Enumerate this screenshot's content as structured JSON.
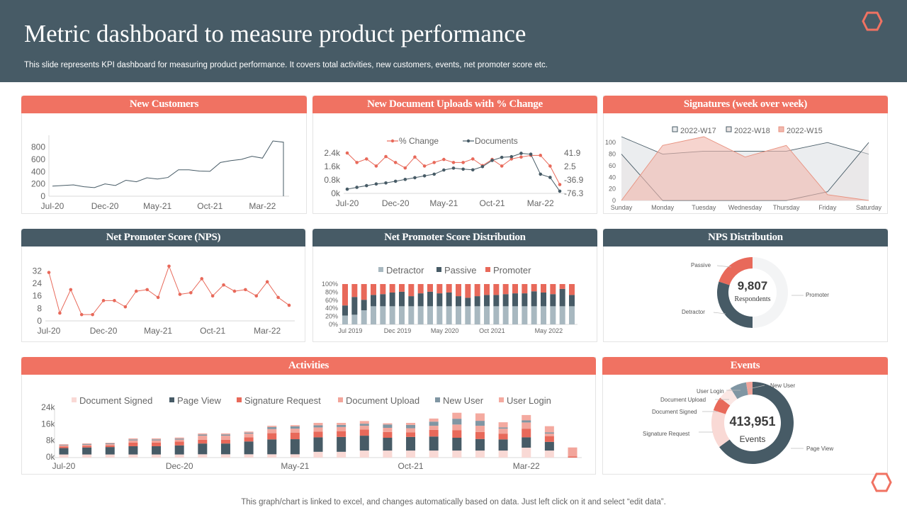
{
  "header": {
    "title": "Metric dashboard to measure product performance",
    "subtitle": "This slide represents KPI dashboard for measuring product performance. It covers total activities, new customers, events, net promoter score etc.",
    "logo_icon": "hexagon-outline-icon"
  },
  "colors": {
    "coral": "#f07262",
    "dark": "#475b66",
    "orange": "#e8695a",
    "pink": "#f9d9d5",
    "salmon": "#f2a59b",
    "slate": "#8096a3",
    "light": "#f3f4f5"
  },
  "footer": "This graph/chart is linked to excel,  and changes automatically based on data. Just left click on it and select “edit data”.",
  "panels": {
    "new_customers": "New Customers",
    "doc_uploads": "New Document Uploads with % Change",
    "signatures": "Signatures (week over week)",
    "nps": "Net Promoter Score (NPS)",
    "nps_dist": "Net Promoter Score Distribution",
    "nps_donut": "NPS Distribution",
    "activities": "Activities",
    "events": "Events"
  },
  "nps_donut": {
    "total": "9,807",
    "total_label": "Respondents",
    "labels": {
      "passive": "Passive",
      "promoter": "Promoter",
      "detractor": "Detractor"
    }
  },
  "events_donut": {
    "total": "413,951",
    "total_label": "Events",
    "labels": {
      "new_user": "New User",
      "user_login": "User Login",
      "document_upload": "Document Upload",
      "document_signed": "Document Signed",
      "signature_request": "Signature Request",
      "page_view": "Page View"
    }
  },
  "chart_data": [
    {
      "id": "new_customers",
      "type": "line",
      "x_ticks": [
        "Jul-20",
        "Dec-20",
        "May-21",
        "Oct-21",
        "Mar-22"
      ],
      "x_tick_index": [
        0,
        5,
        10,
        15,
        20
      ],
      "ylim": [
        0,
        900
      ],
      "y_ticks": [
        0,
        200,
        400,
        600,
        800
      ],
      "series": [
        {
          "values": [
            165,
            175,
            185,
            155,
            140,
            200,
            175,
            260,
            235,
            300,
            280,
            305,
            430,
            430,
            410,
            405,
            550,
            580,
            600,
            650,
            620,
            900,
            880
          ]
        }
      ]
    },
    {
      "id": "doc_uploads",
      "type": "line",
      "x_ticks": [
        "Jul-20",
        "Dec-20",
        "May-21",
        "Oct-21",
        "Mar-22"
      ],
      "x_tick_index": [
        0,
        5,
        10,
        15,
        20
      ],
      "ylim": [
        0,
        2400
      ],
      "y_ticks": [
        "0k",
        "0.8k",
        "1.6k",
        "2.4k"
      ],
      "y2lim": [
        -76.3,
        41.9
      ],
      "y2_ticks": [
        "-76.3",
        "-36.9",
        "2.5",
        "41.9"
      ],
      "legend": "top",
      "series": [
        {
          "name": "% Change",
          "axis": "right",
          "values": [
            41.9,
            14.1,
            24.5,
            3.7,
            31.5,
            14.1,
            -1.9,
            30.1,
            3.7,
            14.1,
            23.1,
            14.1,
            14.1,
            24.5,
            5.1,
            23.1,
            3.7,
            24.5,
            30.1,
            35.0,
            35.0,
            3.7,
            -50.5
          ]
        },
        {
          "name": "Documents",
          "axis": "left",
          "values": [
            250,
            360,
            460,
            560,
            620,
            720,
            830,
            930,
            1040,
            1140,
            1390,
            1500,
            1440,
            1400,
            1590,
            1960,
            2140,
            2180,
            2380,
            2330,
            1140,
            950,
            130
          ]
        }
      ]
    },
    {
      "id": "signatures",
      "type": "area",
      "categories": [
        "Sunday",
        "Monday",
        "Tuesday",
        "Wednesday",
        "Thursday",
        "Friday",
        "Saturday"
      ],
      "ylim": [
        0,
        110
      ],
      "y_ticks": [
        0,
        20,
        40,
        60,
        80,
        100
      ],
      "legend": "top",
      "series": [
        {
          "name": "2022-W17",
          "values": [
            110,
            80,
            85,
            85,
            85,
            100,
            80
          ]
        },
        {
          "name": "2022-W18",
          "values": [
            80,
            0,
            0,
            0,
            0,
            15,
            100
          ]
        },
        {
          "name": "2022-W15",
          "values": [
            0,
            95,
            110,
            75,
            95,
            10,
            0
          ]
        }
      ]
    },
    {
      "id": "nps",
      "type": "line",
      "x_ticks": [
        "Jul-20",
        "Dec-20",
        "May-21",
        "Oct-21",
        "Mar-22"
      ],
      "x_tick_index": [
        0,
        5,
        10,
        15,
        20
      ],
      "ylim": [
        0,
        34
      ],
      "y_ticks": [
        0,
        8,
        16,
        24,
        32
      ],
      "series": [
        {
          "values": [
            31,
            5,
            20,
            4,
            4,
            13,
            13,
            9,
            19,
            20,
            15,
            35,
            17,
            18,
            27,
            16,
            23,
            19,
            20,
            16,
            25,
            15,
            10
          ]
        }
      ]
    },
    {
      "id": "nps_dist",
      "type": "bar",
      "stacked": true,
      "ylim": [
        0,
        100
      ],
      "y_ticks": [
        "0%",
        "20%",
        "40%",
        "60%",
        "80%",
        "100%"
      ],
      "x_ticks": [
        "Jul 2019",
        "Dec 2019",
        "May 2020",
        "Oct 2021",
        "May 2022"
      ],
      "x_tick_index": [
        1,
        6,
        11,
        16,
        22
      ],
      "legend": "top",
      "series": [
        {
          "name": "Detractor",
          "values": [
            22,
            24,
            35,
            45,
            45,
            45,
            45,
            45,
            45,
            45,
            45,
            45,
            45,
            45,
            45,
            45,
            45,
            45,
            45,
            45,
            45,
            45,
            45,
            45,
            45
          ]
        },
        {
          "name": "Passive",
          "values": [
            25,
            44,
            26,
            28,
            30,
            34,
            36,
            25,
            32,
            36,
            32,
            34,
            25,
            21,
            25,
            28,
            28,
            30,
            32,
            32,
            37,
            34,
            30,
            43,
            28
          ]
        },
        {
          "name": "Promoter",
          "values": [
            53,
            32,
            39,
            27,
            25,
            21,
            19,
            30,
            23,
            19,
            23,
            21,
            30,
            34,
            30,
            27,
            27,
            25,
            23,
            23,
            18,
            21,
            25,
            12,
            27
          ]
        }
      ]
    },
    {
      "id": "nps_donut",
      "type": "pie",
      "series": [
        {
          "name": "Promoter",
          "value": 50
        },
        {
          "name": "Detractor",
          "value": 30
        },
        {
          "name": "Passive",
          "value": 20
        }
      ]
    },
    {
      "id": "activities",
      "type": "bar",
      "stacked": true,
      "ylim": [
        0,
        24
      ],
      "y_ticks": [
        "0k",
        "8k",
        "16k",
        "24k"
      ],
      "x_ticks": [
        "Jul-20",
        "Dec-20",
        "May-21",
        "Oct-21",
        "Mar-22"
      ],
      "x_tick_index": [
        0,
        5,
        10,
        15,
        20
      ],
      "legend": "top",
      "series": [
        {
          "name": "Document Signed",
          "values": [
            1.5,
            1.5,
            1.5,
            1.5,
            1.5,
            1.5,
            1.6,
            1.6,
            1.6,
            1.6,
            1.6,
            2.8,
            2.8,
            3.4,
            3.4,
            3.4,
            3.4,
            3.4,
            3.4,
            3.4,
            4.8,
            3.4,
            0
          ]
        },
        {
          "name": "Page View",
          "values": [
            3.1,
            3.4,
            3.6,
            4.0,
            4.0,
            4.4,
            5.2,
            5.2,
            6.2,
            7.2,
            7.3,
            7.0,
            7.2,
            7.2,
            6.2,
            6.6,
            6.8,
            6.2,
            5.6,
            5.4,
            5.0,
            4.2,
            0
          ]
        },
        {
          "name": "Signature Request",
          "values": [
            0.8,
            0.8,
            0.8,
            1.8,
            1.8,
            1.8,
            1.8,
            1.8,
            2.0,
            3.0,
            3.1,
            2.8,
            2.8,
            3.0,
            2.8,
            2.2,
            3.2,
            3.6,
            3.4,
            2.8,
            4.2,
            2.8,
            0.6
          ]
        },
        {
          "name": "Document Upload",
          "values": [
            0.5,
            0.5,
            0.6,
            1.0,
            1.0,
            1.0,
            2.0,
            2.0,
            1.8,
            2.0,
            2.0,
            2.0,
            2.0,
            1.8,
            2.0,
            2.0,
            2.0,
            2.8,
            3.0,
            2.4,
            3.0,
            1.2,
            4.3
          ]
        },
        {
          "name": "New User",
          "values": [
            0.3,
            0.4,
            0.4,
            0.5,
            0.5,
            0.5,
            0.6,
            0.6,
            0.5,
            1.0,
            1.1,
            1.0,
            1.0,
            1.0,
            1.6,
            1.6,
            2.0,
            2.8,
            2.4,
            0.6,
            1.0,
            0.6,
            0
          ]
        },
        {
          "name": "User Login",
          "values": [
            0.3,
            0.3,
            0.3,
            0.5,
            0.5,
            0.5,
            0.5,
            0.5,
            0.5,
            0.6,
            0.6,
            1.2,
            1.0,
            1.3,
            0.6,
            1.0,
            1.5,
            2.9,
            3.6,
            2.5,
            2.6,
            3.0,
            0
          ]
        }
      ]
    },
    {
      "id": "events",
      "type": "pie",
      "series": [
        {
          "name": "Page View",
          "value": 65
        },
        {
          "name": "Signature Request",
          "value": 15
        },
        {
          "name": "Document Signed",
          "value": 5.5
        },
        {
          "name": "Document Upload",
          "value": 5.5
        },
        {
          "name": "User Login",
          "value": 6.5
        },
        {
          "name": "New User",
          "value": 2.5
        }
      ]
    }
  ]
}
